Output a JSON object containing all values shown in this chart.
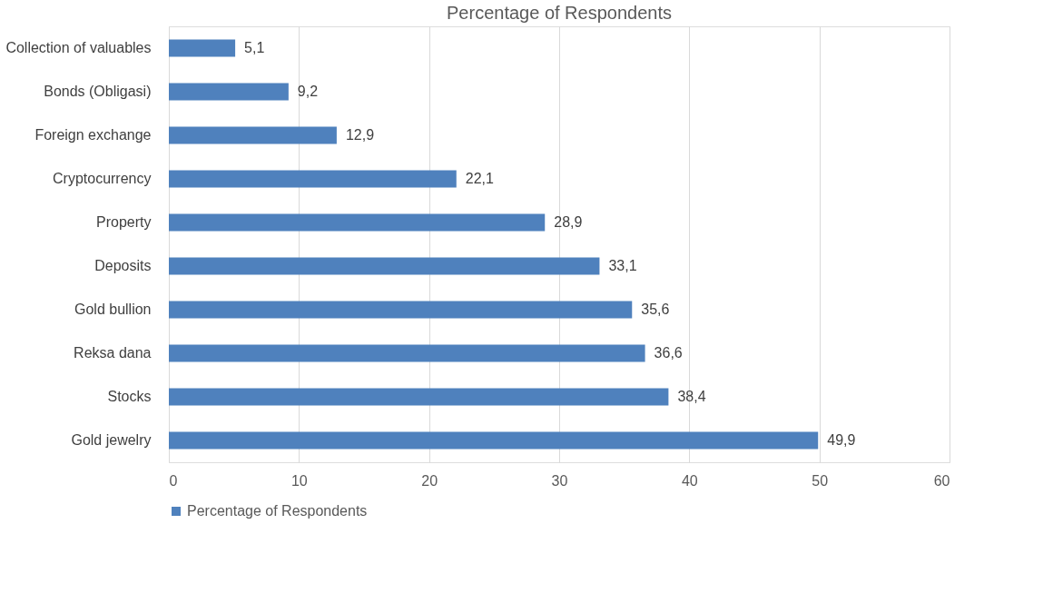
{
  "chart_data": {
    "type": "bar",
    "orientation": "horizontal",
    "title": "Percentage of Respondents",
    "categories": [
      "Collection of valuables",
      "Bonds (Obligasi)",
      "Foreign exchange",
      "Cryptocurrency",
      "Property",
      "Deposits",
      "Gold bullion",
      "Reksa dana",
      "Stocks",
      "Gold jewelry"
    ],
    "series": [
      {
        "name": "Percentage of Respondents",
        "color": "#4f81bd",
        "values": [
          5.1,
          9.2,
          12.9,
          22.1,
          28.9,
          33.1,
          35.6,
          36.6,
          38.4,
          49.9
        ],
        "value_labels": [
          "5,1",
          "9,2",
          "12,9",
          "22,1",
          "28,9",
          "33,1",
          "35,6",
          "36,6",
          "38,4",
          "49,9"
        ]
      }
    ],
    "xlim": [
      0,
      60
    ],
    "xticks": [
      0,
      10,
      20,
      30,
      40,
      50,
      60
    ],
    "grid": "x",
    "legend": "bottom"
  }
}
